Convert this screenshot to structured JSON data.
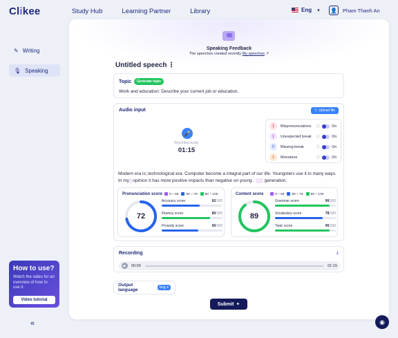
{
  "brand": {
    "logo_pre": "Cl",
    "logo_accent": "i",
    "logo_post": "kee"
  },
  "nav": {
    "items": [
      "Study Hub",
      "Learning Partner",
      "Library"
    ]
  },
  "lang": {
    "label": "Eng"
  },
  "user": {
    "name": "Pham Thanh An"
  },
  "sidebar": {
    "items": [
      {
        "label": "Writing",
        "icon": "pencil-icon"
      },
      {
        "label": "Speaking",
        "icon": "microphone-icon"
      }
    ]
  },
  "howto": {
    "title": "How to use?",
    "desc": "Watch the video for an overview of how to use it.",
    "button": "Video tutorial"
  },
  "hero": {
    "title": "Speaking Feedback",
    "sub_prefix": "The speeches created recently",
    "sub_link": "My speeches"
  },
  "speech": {
    "title": "Untitled speech"
  },
  "topic": {
    "label": "Topic",
    "generate": "Generate topic",
    "text": "Work and education: Describe your current job or education."
  },
  "audio": {
    "label": "Audio input",
    "upload": "Upload file",
    "rec_label": "Recorded audio",
    "rec_time": "01:15",
    "toggles": [
      {
        "count": "1",
        "name": "Mispronunciations",
        "state": "On",
        "color": "#fde2e6",
        "text_color": "#c2344d"
      },
      {
        "count": "1",
        "name": "Unexpected break",
        "state": "On",
        "color": "#f2e6fb",
        "text_color": "#8a3fc1"
      },
      {
        "count": "0",
        "name": "Missing break",
        "state": "On",
        "color": "#e4ebfb",
        "text_color": "#3b5ed0"
      },
      {
        "count": "1",
        "name": "Monotone",
        "state": "On",
        "color": "#fde9d6",
        "text_color": "#c76a1a"
      }
    ],
    "essay": {
      "p1": "Modern era is",
      "p2": "technological era. Computer become a integral part of our life. Youngsters use it in many ways. In my",
      "p3": "opinion it has more positive impacts than negative on young",
      "p4": ".",
      "p5": "generation."
    }
  },
  "legend": {
    "low": "0 ~ 59",
    "mid": "60 ~ 79",
    "high": "80 ~ 100",
    "low_color": "#a855f7",
    "mid_color": "#2563eb",
    "high_color": "#22c55e"
  },
  "pronunciation": {
    "title": "Pronunciation score",
    "score": "72",
    "score_value": 72,
    "color": "#2563eb",
    "metrics": [
      {
        "name": "Accuracy score",
        "value": "62",
        "value_num": 62,
        "max": "/100",
        "color": "#2563eb"
      },
      {
        "name": "Fluency score",
        "value": "80",
        "value_num": 80,
        "max": "/100",
        "color": "#22c55e"
      },
      {
        "name": "Prosody score",
        "value": "60",
        "value_num": 60,
        "max": "/100",
        "color": "#2563eb"
      }
    ]
  },
  "content": {
    "title": "Content score",
    "score": "89",
    "score_value": 89,
    "color": "#22c55e",
    "metrics": [
      {
        "name": "Grammar score",
        "value": "90",
        "value_num": 90,
        "max": "/100",
        "color": "#22c55e"
      },
      {
        "name": "Vocabulary score",
        "value": "78",
        "value_num": 78,
        "max": "/100",
        "color": "#2563eb"
      },
      {
        "name": "Topic score",
        "value": "90",
        "value_num": 90,
        "max": "/100",
        "color": "#22c55e"
      }
    ]
  },
  "recording": {
    "label": "Recording",
    "start": "00:00",
    "end": "01:15"
  },
  "output_lang": {
    "label": "Output language",
    "value": "Eng"
  },
  "submit": {
    "label": "Submit"
  }
}
